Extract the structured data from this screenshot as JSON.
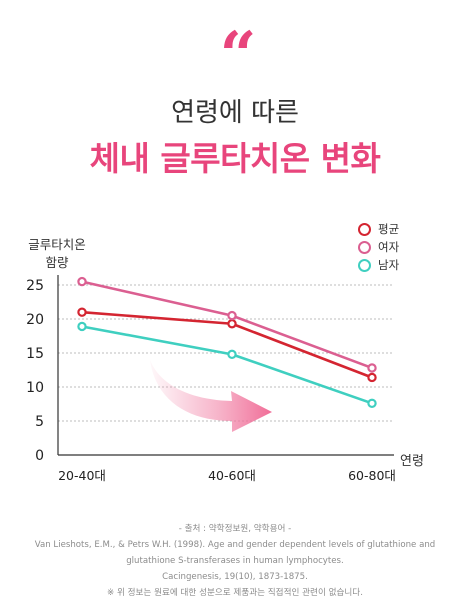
{
  "header": {
    "quote_mark": "“",
    "line1": "연령에 따른",
    "line2": "체내 글루타치온 변화"
  },
  "chart_data": {
    "type": "line",
    "categories": [
      "20-40대",
      "40-60대",
      "60-80대"
    ],
    "ylabel_line1": "글루타치온",
    "ylabel_line2": "함량",
    "xlabel": "연령",
    "ylim": [
      0,
      25
    ],
    "yticks": [
      0,
      5,
      10,
      15,
      20,
      25
    ],
    "grid": true,
    "legend_position": "top-right",
    "series": [
      {
        "name": "평균",
        "color": "#d42531",
        "values": [
          21.0,
          19.3,
          11.4
        ]
      },
      {
        "name": "여자",
        "color": "#db5f91",
        "values": [
          25.5,
          20.5,
          12.8
        ]
      },
      {
        "name": "남자",
        "color": "#3fcfc0",
        "values": [
          18.9,
          14.8,
          7.6
        ]
      }
    ],
    "arrow_color": "#f07aa0"
  },
  "footer": {
    "line1": "- 출처 : 약학정보원, 약학용어 -",
    "line2": "Van Lieshots, E.M., & Petrs W.H. (1998). Age and gender dependent levels of glutathione and",
    "line3": "glutathione S-transferases in human lymphocytes.",
    "line4": "Cacingenesis, 19(10), 1873-1875.",
    "line5": "※ 위 정보는 원료에 대한 성분으로 제품과는 직접적인 관련이 없습니다."
  }
}
